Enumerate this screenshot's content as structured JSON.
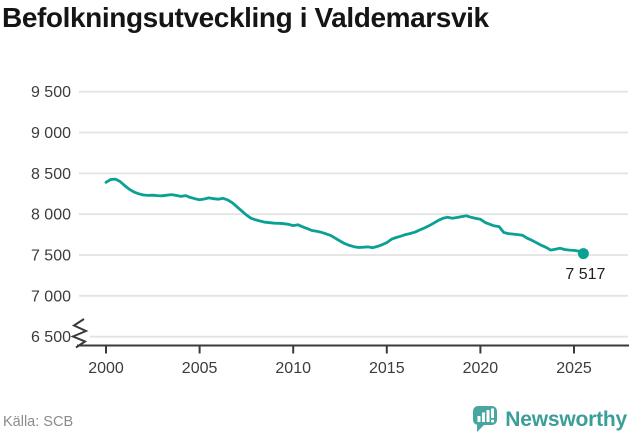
{
  "title": "Befolkningsutveckling i Valdemarsvik",
  "source": "Källa: SCB",
  "branding": {
    "name": "Newsworthy",
    "icon": "speech-bubble-bar-chart-icon",
    "icon_color": "#47a69f",
    "text_color": "#3b9e98"
  },
  "colors": {
    "line": "#0ba094",
    "grid": "#e3e3e3",
    "axis": "#3a3a3a",
    "tick_label": "#3c3c3c",
    "title": "#151515",
    "source": "#8b8b8b",
    "end_label": "#222222",
    "background": "#ffffff"
  },
  "chart_data": {
    "type": "line",
    "title": "Befolkningsutveckling i Valdemarsvik",
    "xlabel": "",
    "ylabel": "",
    "grid": "horizontal",
    "legend": "none",
    "axis_break_bottom_left": true,
    "x_ticks": [
      2000,
      2005,
      2010,
      2015,
      2020,
      2025
    ],
    "y_ticks": [
      6500,
      7000,
      7500,
      8000,
      8500,
      9000,
      9500
    ],
    "y_tick_labels": [
      "6 500",
      "7 000",
      "7 500",
      "8 000",
      "8 500",
      "9 000",
      "9 500"
    ],
    "ylim_displayed": [
      6500,
      9500
    ],
    "xlim": [
      1998.5,
      2027
    ],
    "end_point": {
      "x": 2025.5,
      "value": 7517,
      "label": "7 517"
    },
    "x": [
      2000,
      2000.25,
      2000.5,
      2000.75,
      2001,
      2001.25,
      2001.5,
      2001.75,
      2002,
      2002.25,
      2002.5,
      2002.75,
      2003,
      2003.25,
      2003.5,
      2003.75,
      2004,
      2004.25,
      2004.5,
      2004.75,
      2005,
      2005.25,
      2005.5,
      2005.75,
      2006,
      2006.25,
      2006.5,
      2006.75,
      2007,
      2007.25,
      2007.5,
      2007.75,
      2008,
      2008.25,
      2008.5,
      2008.75,
      2009,
      2009.25,
      2009.5,
      2009.75,
      2010,
      2010.25,
      2010.5,
      2010.75,
      2011,
      2011.25,
      2011.5,
      2011.75,
      2012,
      2012.25,
      2012.5,
      2012.75,
      2013,
      2013.25,
      2013.5,
      2013.75,
      2014,
      2014.25,
      2014.5,
      2014.75,
      2015,
      2015.25,
      2015.5,
      2015.75,
      2016,
      2016.25,
      2016.5,
      2016.75,
      2017,
      2017.25,
      2017.5,
      2017.75,
      2018,
      2018.25,
      2018.5,
      2018.75,
      2019,
      2019.25,
      2019.5,
      2019.75,
      2020,
      2020.25,
      2020.5,
      2020.75,
      2021,
      2021.25,
      2021.5,
      2021.75,
      2022,
      2022.25,
      2022.5,
      2022.75,
      2023,
      2023.25,
      2023.5,
      2023.75,
      2024,
      2024.25,
      2024.5,
      2024.75,
      2025,
      2025.25,
      2025.5
    ],
    "values": [
      8390,
      8425,
      8430,
      8400,
      8350,
      8305,
      8270,
      8250,
      8235,
      8230,
      8232,
      8228,
      8225,
      8233,
      8240,
      8230,
      8218,
      8228,
      8205,
      8190,
      8176,
      8186,
      8200,
      8190,
      8184,
      8195,
      8175,
      8140,
      8090,
      8040,
      7990,
      7950,
      7930,
      7915,
      7902,
      7896,
      7890,
      7888,
      7884,
      7876,
      7860,
      7870,
      7846,
      7824,
      7800,
      7790,
      7778,
      7760,
      7740,
      7706,
      7672,
      7640,
      7618,
      7602,
      7592,
      7596,
      7600,
      7590,
      7606,
      7626,
      7652,
      7694,
      7714,
      7730,
      7750,
      7764,
      7780,
      7806,
      7830,
      7858,
      7890,
      7924,
      7950,
      7962,
      7950,
      7960,
      7970,
      7980,
      7962,
      7948,
      7938,
      7900,
      7876,
      7856,
      7848,
      7776,
      7762,
      7756,
      7750,
      7742,
      7706,
      7680,
      7650,
      7620,
      7594,
      7560,
      7570,
      7584,
      7568,
      7560,
      7556,
      7548,
      7517
    ]
  }
}
